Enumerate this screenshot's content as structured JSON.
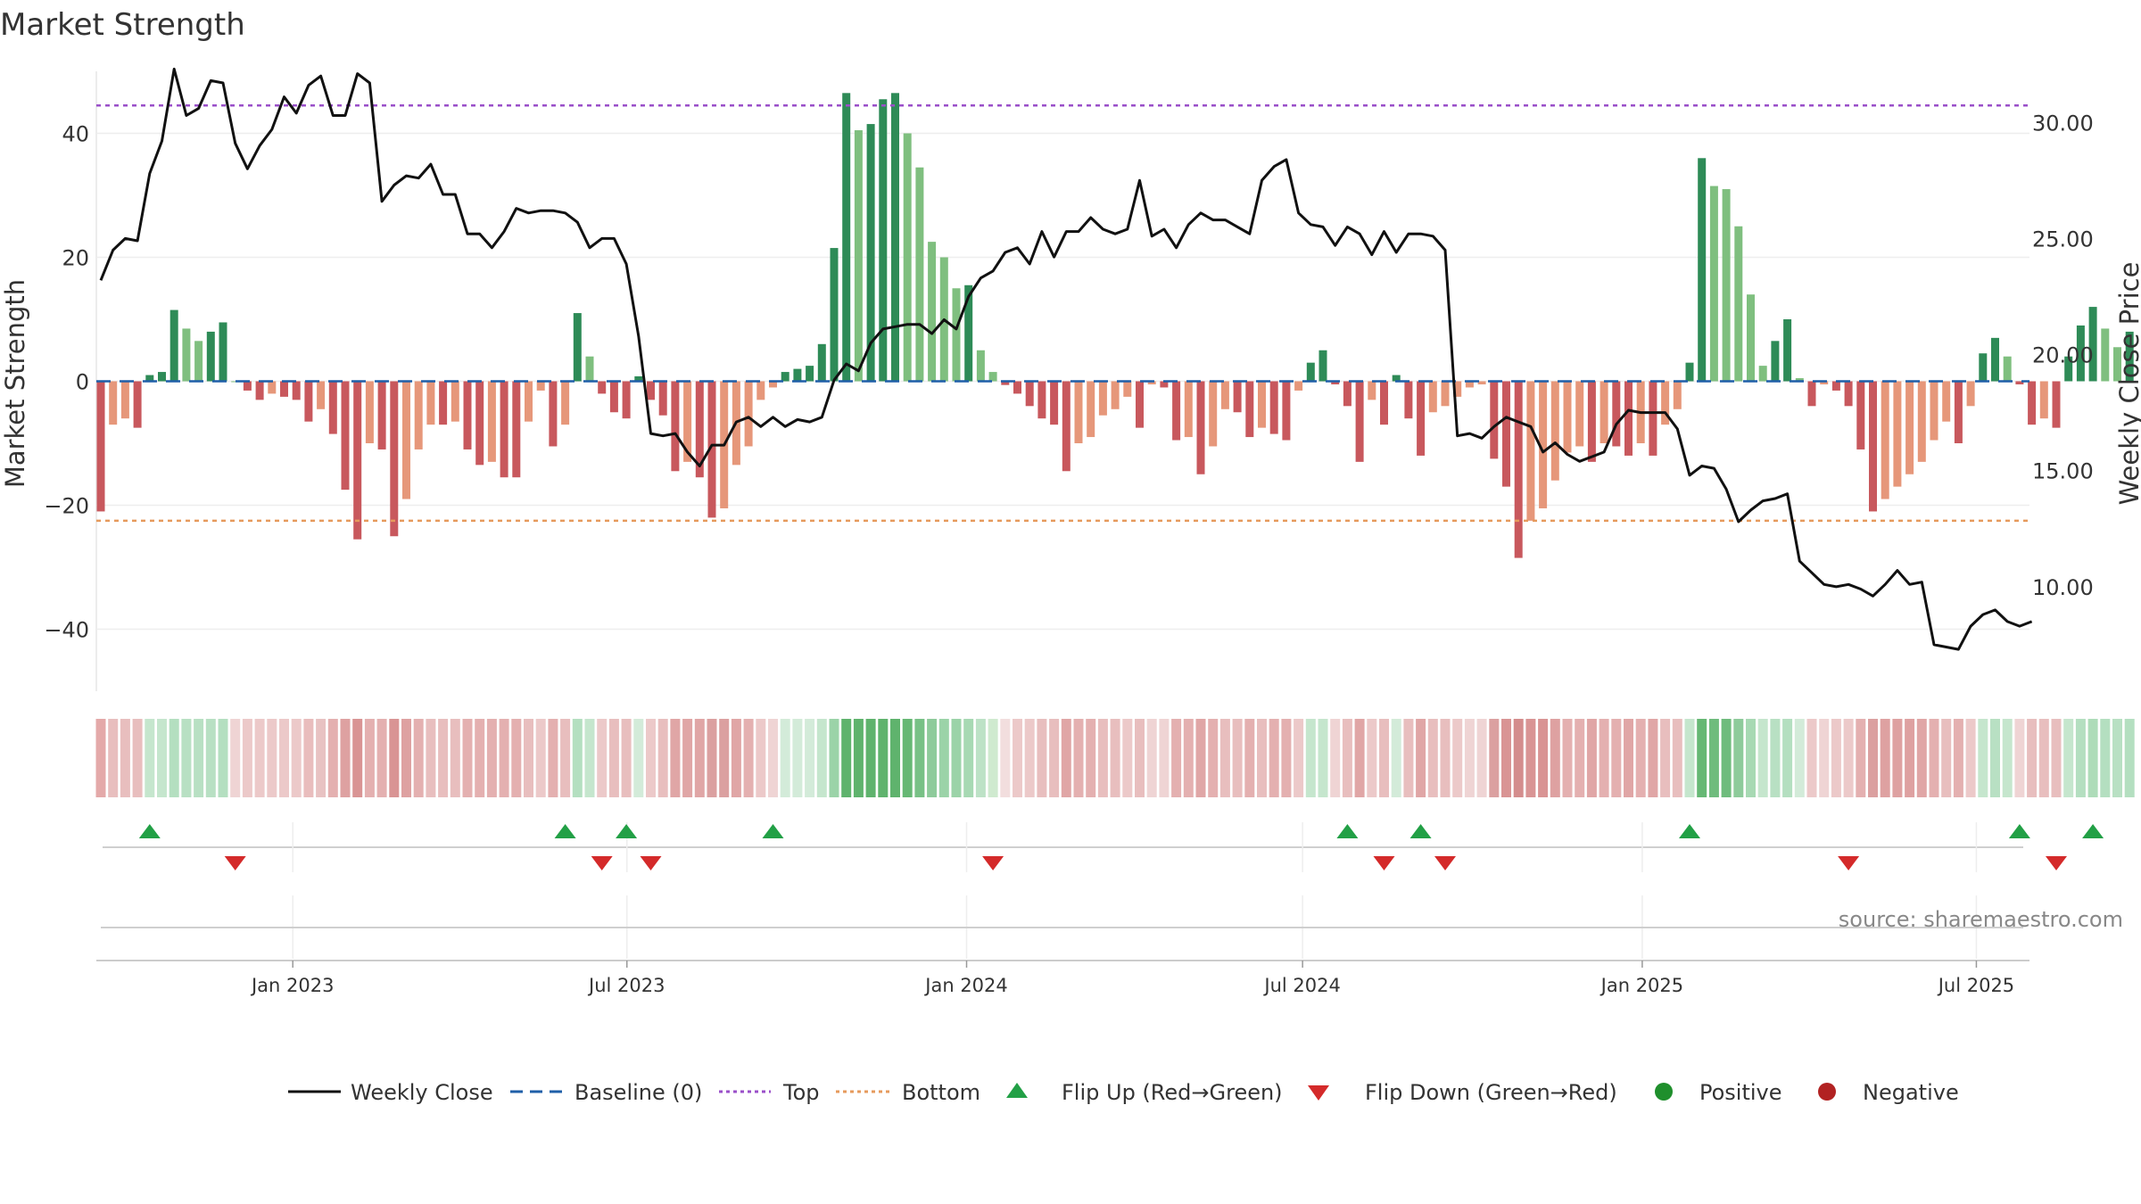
{
  "chart_data": {
    "type": "bar",
    "title": "Market Strength",
    "ylabel_left": "Market Strength",
    "ylabel_right": "Weekly Close Price",
    "source": "source: sharemaestro.com",
    "left_axis": {
      "ylim": [
        -50,
        50
      ],
      "ticks": [
        40,
        20,
        0,
        -20,
        -40
      ],
      "tick_labels": [
        "40",
        "20",
        "0",
        "−20",
        "−40"
      ]
    },
    "right_axis": {
      "ylim": [
        5.5,
        32.2
      ],
      "ticks": [
        30,
        25,
        20,
        15,
        10
      ],
      "tick_labels": [
        "30.00",
        "25.00",
        "20.00",
        "15.00",
        "10.00"
      ]
    },
    "x_axis": {
      "start_date": "2022-09-19",
      "end_date": "2025-09-22",
      "ticks": [
        {
          "date": "2023-01-01",
          "label": "Jan 2023"
        },
        {
          "date": "2023-07-01",
          "label": "Jul 2023"
        },
        {
          "date": "2024-01-01",
          "label": "Jan 2024"
        },
        {
          "date": "2024-07-01",
          "label": "Jul 2024"
        },
        {
          "date": "2025-01-01",
          "label": "Jan 2025"
        },
        {
          "date": "2025-07-01",
          "label": "Jul 2025"
        }
      ]
    },
    "top_level": 44.5,
    "bottom_level": -22.5,
    "strength": [
      -21,
      -7,
      -6,
      -7.5,
      1,
      1.5,
      11.5,
      8.5,
      6.5,
      8,
      9.5,
      0,
      -1.5,
      -3,
      -2,
      -2.5,
      -3,
      -6.5,
      -4.5,
      -8.5,
      -17.5,
      -25.5,
      -10,
      -11,
      -25,
      -19,
      -11,
      -7,
      -7,
      -6.5,
      -11,
      -13.5,
      -13,
      -15.5,
      -15.5,
      -6.5,
      -1.5,
      -10.5,
      -7,
      11,
      4,
      -2,
      -5,
      -6,
      0.8,
      -3,
      -5.5,
      -14.5,
      -13,
      -15.5,
      -22,
      -20.5,
      -13.5,
      -10.5,
      -3,
      -1,
      1.5,
      2,
      2.5,
      6,
      21.5,
      46.5,
      40.5,
      41.5,
      45.5,
      46.5,
      40,
      34.5,
      22.5,
      20,
      15,
      15.5,
      5,
      1.5,
      -0.6,
      -2,
      -4,
      -6,
      -7,
      -14.5,
      -10,
      -9,
      -5.5,
      -4.5,
      -2.5,
      -7.5,
      -0.5,
      -1,
      -9.5,
      -9,
      -15,
      -10.5,
      -4.5,
      -5,
      -9,
      -7.5,
      -8.5,
      -9.5,
      -1.5,
      3,
      5,
      -0.5,
      -4,
      -13,
      -3,
      -7,
      1,
      -6,
      -12,
      -5,
      -4,
      -2.5,
      -1,
      -0.5,
      -12.5,
      -17,
      -28.5,
      -22.5,
      -20.5,
      -16,
      -11.5,
      -10.5,
      -13,
      -10,
      -10.5,
      -12,
      -10,
      -12,
      -7,
      -4.5,
      3,
      36,
      31.5,
      31,
      25,
      14,
      2.5,
      6.5,
      10,
      0.5,
      -4,
      -0.5,
      -1.5,
      -4,
      -11,
      -21,
      -19,
      -17,
      -15,
      -13,
      -9.5,
      -6.5,
      -10,
      -4,
      4.5,
      7,
      4,
      -0.5,
      -7,
      -6,
      -7.5,
      4,
      9,
      12,
      8.5,
      5.5,
      8
    ],
    "close": [
      23.2,
      24.5,
      25,
      24.9,
      27.8,
      29.2,
      32.3,
      30.3,
      30.6,
      31.8,
      31.7,
      29.1,
      28,
      29,
      29.7,
      31.1,
      30.4,
      31.6,
      32,
      30.3,
      30.3,
      32.1,
      31.7,
      26.6,
      27.3,
      27.7,
      27.6,
      28.2,
      26.9,
      26.9,
      25.2,
      25.2,
      24.6,
      25.3,
      26.3,
      26.1,
      26.2,
      26.2,
      26.1,
      25.7,
      24.6,
      25,
      25,
      23.9,
      20.8,
      16.6,
      16.5,
      16.6,
      15.8,
      15.2,
      16.1,
      16.1,
      17.1,
      17.3,
      16.9,
      17.3,
      16.9,
      17.2,
      17.1,
      17.3,
      18.9,
      19.6,
      19.3,
      20.5,
      21.1,
      21.2,
      21.3,
      21.3,
      20.9,
      21.5,
      21.1,
      22.5,
      23.3,
      23.6,
      24.4,
      24.6,
      23.9,
      25.3,
      24.2,
      25.3,
      25.3,
      25.9,
      25.4,
      25.2,
      25.4,
      27.5,
      25.1,
      25.4,
      24.6,
      25.6,
      26.1,
      25.8,
      25.8,
      25.5,
      25.2,
      27.5,
      28.1,
      28.4,
      26.1,
      25.6,
      25.5,
      24.7,
      25.5,
      25.2,
      24.3,
      25.3,
      24.4,
      25.2,
      25.2,
      25.1,
      24.5,
      16.5,
      16.6,
      16.4,
      16.9,
      17.3,
      17.1,
      16.9,
      15.8,
      16.2,
      15.7,
      15.4,
      15.6,
      15.8,
      17,
      17.6,
      17.5,
      17.5,
      17.5,
      16.8,
      14.8,
      15.2,
      15.1,
      14.2,
      12.8,
      13.3,
      13.7,
      13.8,
      14,
      11.1,
      10.6,
      10.1,
      10,
      10.1,
      9.9,
      9.6,
      10.1,
      10.7,
      10.1,
      10.2,
      7.5,
      7.4,
      7.3,
      8.3,
      8.8,
      9,
      8.5,
      8.3,
      8.5
    ],
    "band_colors": [
      "#e4a9a9",
      "#e8bebe",
      "#e8bebe",
      "#e8bebe",
      "#c5e6cd",
      "#c5e6cd",
      "#b4dfc0",
      "#b8e0c3",
      "#b8e0c3",
      "#b8e0c3",
      "#b4dfc0",
      "#efd4d4",
      "#ecc9c9",
      "#ecc9c9",
      "#ecc9c9",
      "#ecc9c9",
      "#ecc9c9",
      "#e9bdbd",
      "#e8c2c2",
      "#e4b0b0",
      "#dea1a1",
      "#d99494",
      "#e4b0b0",
      "#e4b0b0",
      "#d99494",
      "#dea1a1",
      "#e4b0b0",
      "#e8bebe",
      "#e8bebe",
      "#e8bebe",
      "#e4b0b0",
      "#e4b0b0",
      "#e4b0b0",
      "#e4b0b0",
      "#e4b0b0",
      "#e8bebe",
      "#ecc9c9",
      "#e4b0b0",
      "#e8bebe",
      "#b4dfc0",
      "#c5e6cd",
      "#ecc9c9",
      "#e8bebe",
      "#e8bebe",
      "#d3ebd9",
      "#ecc9c9",
      "#e8bebe",
      "#e0a6a6",
      "#e0a6a6",
      "#e0a6a6",
      "#dba0a0",
      "#dba0a0",
      "#e0a6a6",
      "#e4b0b0",
      "#ecc9c9",
      "#efd4d4",
      "#d3ebd9",
      "#d3ebd9",
      "#d3ebd9",
      "#c5e6cd",
      "#9bd3a8",
      "#5fb36d",
      "#5fb36d",
      "#5fb36d",
      "#5fb36d",
      "#5fb36d",
      "#66b874",
      "#78c186",
      "#8ecb9b",
      "#9bd3a8",
      "#9bd3a8",
      "#a7d9b3",
      "#bde2c6",
      "#cfeacf",
      "#f2dede",
      "#ecc9c9",
      "#ecc9c9",
      "#e8bebe",
      "#e8bebe",
      "#e0a6a6",
      "#e4b0b0",
      "#e4b0b0",
      "#e8bebe",
      "#e8bebe",
      "#ecc9c9",
      "#e8bebe",
      "#efd4d4",
      "#efd4d4",
      "#e4b0b0",
      "#e4b0b0",
      "#e0a6a6",
      "#e4b0b0",
      "#e8bebe",
      "#e8bebe",
      "#e4b0b0",
      "#e8bebe",
      "#e4b0b0",
      "#e4b0b0",
      "#ecc9c9",
      "#c5e6cd",
      "#c5e6cd",
      "#efd4d4",
      "#e8bebe",
      "#e0a6a6",
      "#ecc9c9",
      "#e8bebe",
      "#d3ebd9",
      "#e8bebe",
      "#e0a6a6",
      "#e8bebe",
      "#e8bebe",
      "#ecc9c9",
      "#efd4d4",
      "#efd4d4",
      "#dba0a0",
      "#d99494",
      "#d48d8d",
      "#d99494",
      "#d99494",
      "#dea1a1",
      "#e4b0b0",
      "#e4b0b0",
      "#e0a6a6",
      "#e4b0b0",
      "#e4b0b0",
      "#e0a6a6",
      "#e4b0b0",
      "#e0a6a6",
      "#e8bebe",
      "#e8bebe",
      "#c5e6cd",
      "#66b874",
      "#6fbc7d",
      "#6fbc7d",
      "#8ecb9b",
      "#a7d9b3",
      "#c5e6cd",
      "#b8e0c3",
      "#b4dfc0",
      "#d3ebd9",
      "#ecc9c9",
      "#efd4d4",
      "#ecc9c9",
      "#ecc9c9",
      "#e4b0b0",
      "#dba0a0",
      "#dea1a1",
      "#dea1a1",
      "#dea1a1",
      "#e0a6a6",
      "#e4b0b0",
      "#e8bebe",
      "#e4b0b0",
      "#ecc9c9",
      "#c5e6cd",
      "#b8e0c3",
      "#c5e6cd",
      "#efd4d4",
      "#e8bebe",
      "#e8bebe",
      "#e8bebe",
      "#c5e6cd",
      "#b4dfc0",
      "#aedcb9",
      "#b4dfc0",
      "#b8e0c3",
      "#b4dfc0"
    ],
    "flip_up_indices": [
      4,
      38,
      43,
      55,
      102,
      108,
      130,
      157,
      163
    ],
    "flip_down_indices": [
      11,
      41,
      45,
      73,
      105,
      110,
      143,
      160
    ],
    "bar_colors": {
      "red_dark": "#c8585d",
      "red_light": "#e6977a",
      "green_dark": "#2e8b57",
      "green_light": "#7fbf7f"
    },
    "line_colors": {
      "close": "#111111",
      "baseline": "#1f5fa8",
      "top": "#9a4fc9",
      "bottom": "#e69a5c"
    },
    "marker_colors": {
      "up": "#22a046",
      "down": "#d42a2a",
      "positive": "#1f8f2c",
      "negative": "#b22222"
    },
    "legend": {
      "weekly_close": "Weekly Close",
      "baseline": "Baseline (0)",
      "top": "Top",
      "bottom": "Bottom",
      "flip_up": "Flip Up (Red→Green)",
      "flip_down": "Flip Down (Green→Red)",
      "positive": "Positive",
      "negative": "Negative"
    }
  }
}
